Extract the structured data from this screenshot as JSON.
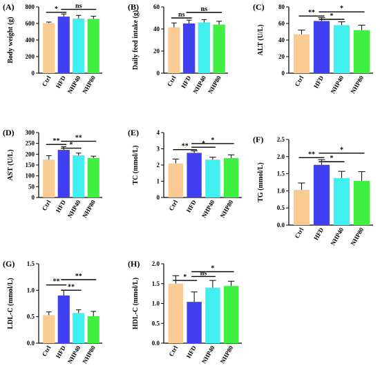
{
  "chart_data": [
    {
      "type": "bar",
      "panel": "(A)",
      "title": "",
      "xlabel": "",
      "ylabel": "Body weight (g)",
      "categories": [
        "Ctrl",
        "HFD",
        "NHP40",
        "NHP80"
      ],
      "values": [
        605,
        683,
        660,
        656
      ],
      "errors": [
        12,
        32,
        38,
        32
      ],
      "ylim": [
        0,
        800
      ],
      "yticks": [
        0,
        200,
        400,
        600,
        800
      ],
      "significance": [
        {
          "from": 0,
          "to": 1,
          "label": "*",
          "y": 735
        },
        {
          "from": 1,
          "to": 3,
          "label": "ns",
          "y": 770
        }
      ]
    },
    {
      "type": "bar",
      "panel": "(B)",
      "title": "",
      "xlabel": "",
      "ylabel": "Daily feed intake (g)",
      "categories": [
        "Ctrl",
        "HFD",
        "NHP40",
        "NHP80"
      ],
      "values": [
        41.5,
        45,
        46,
        44
      ],
      "errors": [
        4,
        3,
        2.5,
        3
      ],
      "ylim": [
        0,
        60
      ],
      "yticks": [
        0,
        20,
        40,
        60
      ],
      "significance": [
        {
          "from": 0,
          "to": 1,
          "label": "ns",
          "y": 50
        },
        {
          "from": 1,
          "to": 3,
          "label": "ns",
          "y": 55
        }
      ]
    },
    {
      "type": "bar",
      "panel": "(C)",
      "title": "",
      "xlabel": "",
      "ylabel": "ALT (U/L)",
      "categories": [
        "Ctrl",
        "HFD",
        "NHP40",
        "NHP80"
      ],
      "values": [
        47,
        63,
        58,
        52
      ],
      "errors": [
        5,
        4,
        4,
        6
      ],
      "ylim": [
        0,
        80
      ],
      "yticks": [
        0,
        20,
        40,
        60,
        80
      ],
      "significance": [
        {
          "from": 0,
          "to": 1,
          "label": "**",
          "y": 69
        },
        {
          "from": 1,
          "to": 2,
          "label": "*",
          "y": 65
        },
        {
          "from": 1,
          "to": 3,
          "label": "*",
          "y": 74
        }
      ]
    },
    {
      "type": "bar",
      "panel": "(D)",
      "title": "",
      "xlabel": "",
      "ylabel": "AST (U/L)",
      "categories": [
        "Ctrl",
        "HFD",
        "NHP40",
        "NHP80"
      ],
      "values": [
        175,
        220,
        195,
        183
      ],
      "errors": [
        18,
        15,
        10,
        8
      ],
      "ylim": [
        0,
        300
      ],
      "yticks": [
        0,
        50,
        100,
        150,
        200,
        250,
        300
      ],
      "significance": [
        {
          "from": 0,
          "to": 1,
          "label": "**",
          "y": 245
        },
        {
          "from": 1,
          "to": 2,
          "label": "*",
          "y": 228
        },
        {
          "from": 1,
          "to": 3,
          "label": "**",
          "y": 260
        }
      ]
    },
    {
      "type": "bar",
      "panel": "(E)",
      "title": "",
      "xlabel": "",
      "ylabel": "TC (mmol/L)",
      "categories": [
        "Ctrl",
        "HFD",
        "NHP40",
        "NHP80"
      ],
      "values": [
        2.1,
        2.75,
        2.33,
        2.43
      ],
      "errors": [
        0.27,
        0.12,
        0.15,
        0.2
      ],
      "ylim": [
        0,
        4
      ],
      "yticks": [
        0,
        1,
        2,
        3,
        4
      ],
      "significance": [
        {
          "from": 0,
          "to": 1,
          "label": "**",
          "y": 2.95
        },
        {
          "from": 1,
          "to": 2,
          "label": "*",
          "y": 3.1
        },
        {
          "from": 1,
          "to": 3,
          "label": "*",
          "y": 3.32
        }
      ]
    },
    {
      "type": "bar",
      "panel": "(F)",
      "title": "",
      "xlabel": "",
      "ylabel": "TG (mmol/L)",
      "categories": [
        "Ctrl",
        "HFD",
        "NHP40",
        "NHP80"
      ],
      "values": [
        1.03,
        1.76,
        1.37,
        1.29
      ],
      "errors": [
        0.2,
        0.15,
        0.2,
        0.27
      ],
      "ylim": [
        0,
        2.5
      ],
      "yticks": [
        0,
        0.5,
        1.0,
        1.5,
        2.0,
        2.5
      ],
      "significance": [
        {
          "from": 0,
          "to": 1,
          "label": "**",
          "y": 1.97
        },
        {
          "from": 1,
          "to": 2,
          "label": "*",
          "y": 1.85
        },
        {
          "from": 1,
          "to": 3,
          "label": "*",
          "y": 2.1
        }
      ]
    },
    {
      "type": "bar",
      "panel": "(G)",
      "title": "",
      "xlabel": "",
      "ylabel": "LDL-C (mmol/L)",
      "categories": [
        "Ctrl",
        "HFD",
        "NHP40",
        "NHP80"
      ],
      "values": [
        0.53,
        0.9,
        0.57,
        0.51
      ],
      "errors": [
        0.06,
        0.1,
        0.06,
        0.09
      ],
      "ylim": [
        0,
        1.5
      ],
      "yticks": [
        0,
        0.5,
        1.0,
        1.5
      ],
      "significance": [
        {
          "from": 0,
          "to": 1,
          "label": "**",
          "y": 1.1
        },
        {
          "from": 1,
          "to": 2,
          "label": "**",
          "y": 1.0
        },
        {
          "from": 1,
          "to": 3,
          "label": "**",
          "y": 1.2
        }
      ]
    },
    {
      "type": "bar",
      "panel": "(H)",
      "title": "",
      "xlabel": "",
      "ylabel": "HDL-C (mmol/L)",
      "categories": [
        "Ctrl",
        "HFD",
        "NHP40",
        "NHP80"
      ],
      "values": [
        1.5,
        1.04,
        1.4,
        1.44
      ],
      "errors": [
        0.2,
        0.25,
        0.18,
        0.12
      ],
      "ylim": [
        0,
        2.0
      ],
      "yticks": [
        0,
        0.5,
        1.0,
        1.5,
        2.0
      ],
      "significance": [
        {
          "from": 0,
          "to": 1,
          "label": "*",
          "y": 1.58
        },
        {
          "from": 1,
          "to": 2,
          "label": "ns",
          "y": 1.68
        },
        {
          "from": 1,
          "to": 3,
          "label": "*",
          "y": 1.8
        }
      ]
    }
  ],
  "colors": {
    "bars": [
      "#FBCB94",
      "#4040F0",
      "#40F0F0",
      "#40F040"
    ],
    "axis": "#000000",
    "error": "#000000"
  }
}
